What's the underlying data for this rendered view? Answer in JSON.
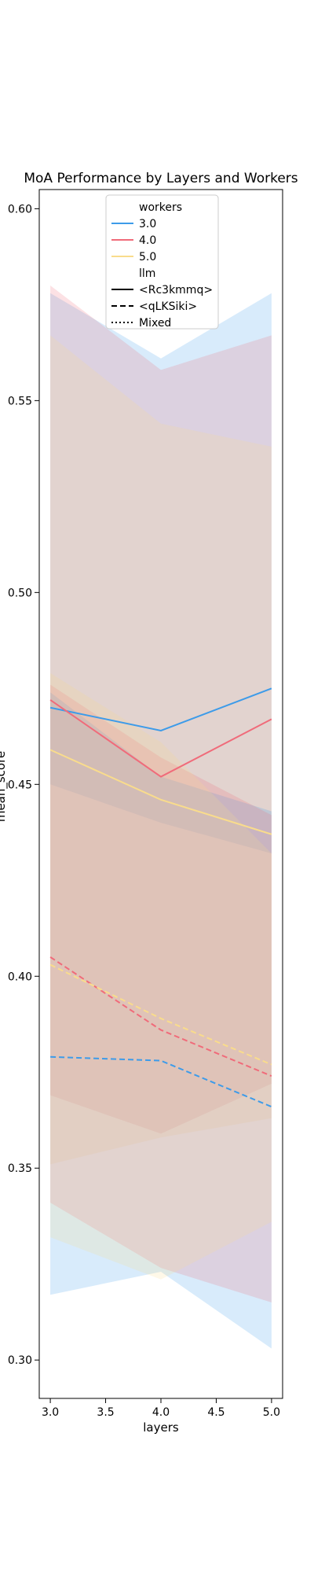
{
  "chart_data": {
    "type": "line",
    "title": "MoA Performance by Layers and Workers",
    "xlabel": "layers",
    "ylabel": "mean_score",
    "xlim": [
      2.9,
      5.1
    ],
    "ylim": [
      0.29,
      0.605
    ],
    "x_ticks": [
      3.0,
      3.5,
      4.0,
      4.5,
      5.0
    ],
    "y_ticks": [
      0.3,
      0.35,
      0.4,
      0.45,
      0.5,
      0.55,
      0.6
    ],
    "x_tick_labels": [
      "3.0",
      "3.5",
      "4.0",
      "4.5",
      "5.0"
    ],
    "y_tick_labels": [
      "0.30",
      "0.35",
      "0.40",
      "0.45",
      "0.50",
      "0.55",
      "0.60"
    ],
    "grid": false,
    "legend": {
      "placement": "top-center",
      "hue_title": "workers",
      "hue_entries": [
        {
          "label": "3.0",
          "color": "#3d9be9"
        },
        {
          "label": "4.0",
          "color": "#f06b7a"
        },
        {
          "label": "5.0",
          "color": "#f9dc8c"
        }
      ],
      "style_title": "llm",
      "style_entries": [
        {
          "label": "<Rc3kmmq>",
          "dash": "solid"
        },
        {
          "label": "<qLKSiki>",
          "dash": "dashed"
        },
        {
          "label": "Mixed",
          "dash": "dotted"
        }
      ]
    },
    "series": [
      {
        "workers": "3.0",
        "llm": "<Rc3kmmq>",
        "color": "#3d9be9",
        "dash": "solid",
        "x": [
          3,
          4,
          5
        ],
        "y": [
          0.47,
          0.464,
          0.475
        ],
        "band_low": [
          0.45,
          0.44,
          0.432
        ],
        "band_high": [
          0.578,
          0.561,
          0.578
        ]
      },
      {
        "workers": "4.0",
        "llm": "<Rc3kmmq>",
        "color": "#f06b7a",
        "dash": "solid",
        "x": [
          3,
          4,
          5
        ],
        "y": [
          0.472,
          0.452,
          0.467
        ],
        "band_low": [
          0.369,
          0.359,
          0.372
        ],
        "band_high": [
          0.58,
          0.558,
          0.567
        ]
      },
      {
        "workers": "5.0",
        "llm": "<Rc3kmmq>",
        "color": "#f9dc8c",
        "dash": "solid",
        "x": [
          3,
          4,
          5
        ],
        "y": [
          0.459,
          0.446,
          0.437
        ],
        "band_low": [
          0.351,
          0.358,
          0.363
        ],
        "band_high": [
          0.567,
          0.544,
          0.538
        ]
      },
      {
        "workers": "3.0",
        "llm": "<qLKSiki>",
        "color": "#3d9be9",
        "dash": "dashed",
        "x": [
          3,
          4,
          5
        ],
        "y": [
          0.379,
          0.378,
          0.366
        ],
        "band_low": [
          0.317,
          0.323,
          0.303
        ],
        "band_high": [
          0.474,
          0.452,
          0.443
        ]
      },
      {
        "workers": "4.0",
        "llm": "<qLKSiki>",
        "color": "#f06b7a",
        "dash": "dashed",
        "x": [
          3,
          4,
          5
        ],
        "y": [
          0.405,
          0.386,
          0.374
        ],
        "band_low": [
          0.341,
          0.324,
          0.315
        ],
        "band_high": [
          0.476,
          0.457,
          0.442
        ]
      },
      {
        "workers": "5.0",
        "llm": "<qLKSiki>",
        "color": "#f9dc8c",
        "dash": "dashed",
        "x": [
          3,
          4,
          5
        ],
        "y": [
          0.403,
          0.389,
          0.377
        ],
        "band_low": [
          0.332,
          0.321,
          0.336
        ],
        "band_high": [
          0.479,
          0.461,
          0.432
        ]
      }
    ]
  }
}
